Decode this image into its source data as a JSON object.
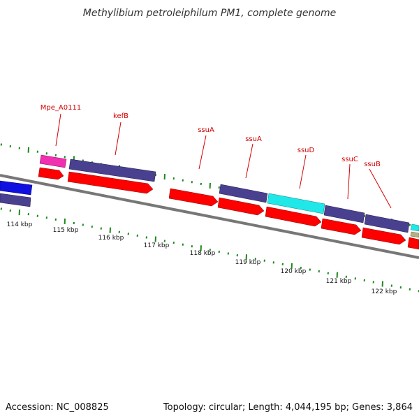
{
  "title": "Methylibium petroleiphilum PM1, complete genome",
  "footer": {
    "accession": "Accession: NC_008825",
    "topology": "Topology: circular; Length: 4,044,195 bp; Genes: 3,864"
  },
  "gene_labels": [
    "Mpe_A0111",
    "kefB",
    "ssuA",
    "ssuA",
    "ssuD",
    "ssuC",
    "ssuB"
  ],
  "kbp_labels": [
    "114 kbp",
    "115 kbp",
    "116 kbp",
    "117 kbp",
    "118 kbp",
    "119 kbp",
    "120 kbp",
    "121 kbp",
    "122 kbp"
  ],
  "colors": {
    "cds_red": "#ff0000",
    "cds_purple": "#4a4090",
    "cds_blue": "#1010e0",
    "cds_cyan": "#20e8e8",
    "cds_pink": "#f030b0",
    "cds_tan": "#b8b080",
    "backbone": "#777777",
    "tick_green": "#1a8a1a",
    "label_red": "#d40000"
  }
}
